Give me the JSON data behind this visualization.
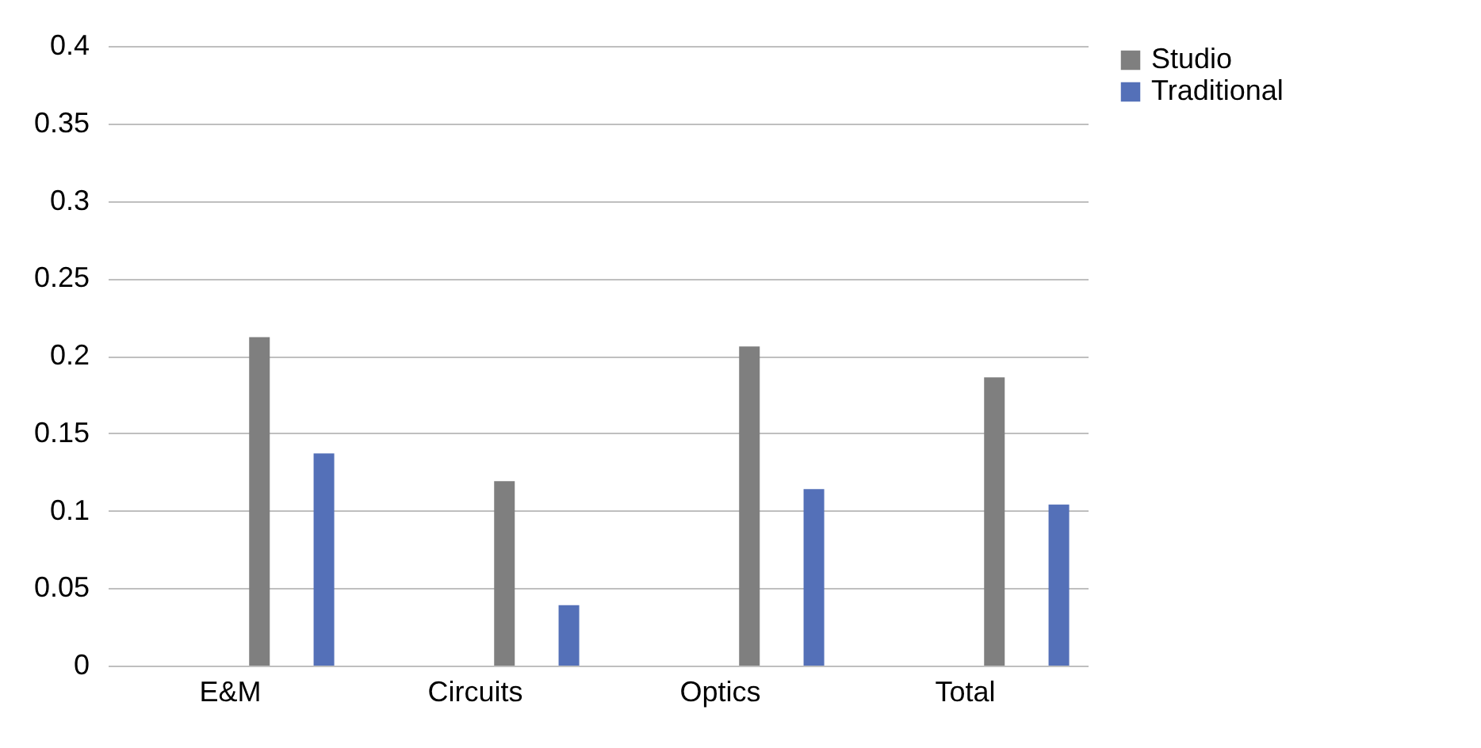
{
  "chart_data": {
    "type": "bar",
    "categories": [
      "E&M",
      "Circuits",
      "Optics",
      "Total"
    ],
    "series": [
      {
        "name": "Studio",
        "color": "#7f7f7f",
        "values": [
          0.212,
          0.119,
          0.206,
          0.186
        ]
      },
      {
        "name": "Traditional",
        "color": "#5470b8",
        "values": [
          0.137,
          0.039,
          0.114,
          0.104
        ]
      }
    ],
    "ylim": [
      0,
      0.4
    ],
    "yticks": [
      0,
      0.05,
      0.1,
      0.15,
      0.2,
      0.25,
      0.3,
      0.35,
      0.4
    ],
    "grid": "y",
    "legend": "right"
  }
}
